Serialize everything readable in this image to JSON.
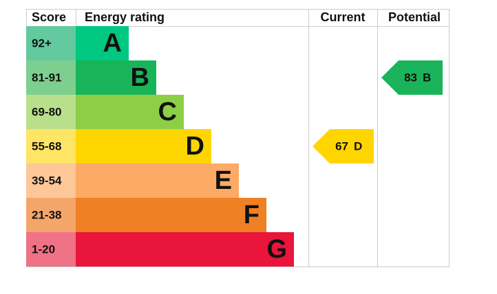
{
  "header": {
    "score": "Score",
    "energy_rating": "Energy rating",
    "current": "Current",
    "potential": "Potential"
  },
  "rows": [
    {
      "score": "92+",
      "rating": "A",
      "color": "#00c781",
      "score_color": "#63caa0"
    },
    {
      "score": "81-91",
      "rating": "B",
      "color": "#19b459",
      "score_color": "#7dcf8f"
    },
    {
      "score": "69-80",
      "rating": "C",
      "color": "#8dce46",
      "score_color": "#badf8c"
    },
    {
      "score": "55-68",
      "rating": "D",
      "color": "#ffd500",
      "score_color": "#ffe566"
    },
    {
      "score": "39-54",
      "rating": "E",
      "color": "#fcaa65",
      "score_color": "#fdc797"
    },
    {
      "score": "21-38",
      "rating": "F",
      "color": "#ef8023",
      "score_color": "#f4a66a"
    },
    {
      "score": "1-20",
      "rating": "G",
      "color": "#e9153b",
      "score_color": "#f07286"
    }
  ],
  "current": {
    "score": 67,
    "rating": "D"
  },
  "potential": {
    "score": 83,
    "rating": "B"
  }
}
